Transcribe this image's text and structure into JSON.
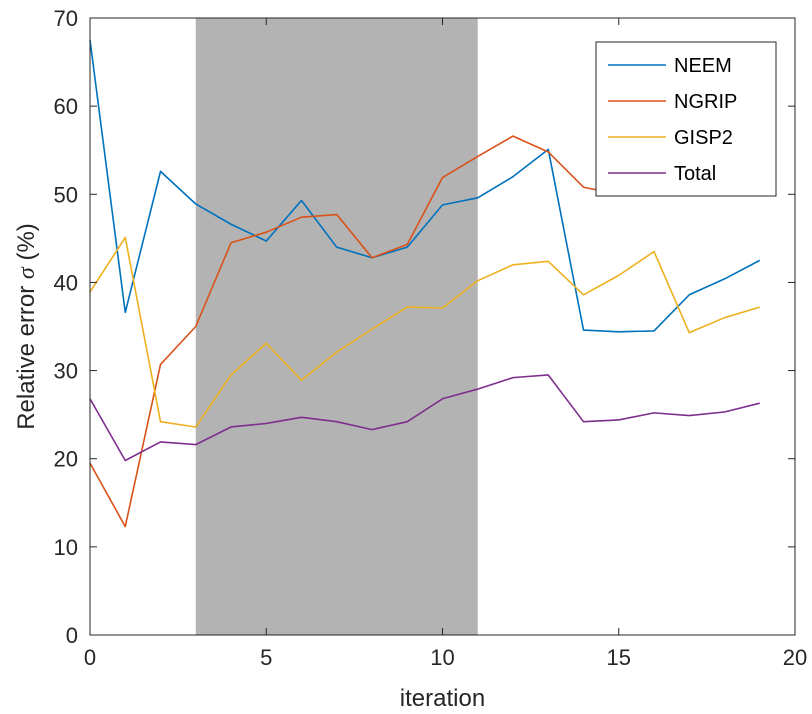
{
  "chart_data": {
    "type": "line",
    "xlabel": "iteration",
    "ylabel_prefix": "Relative error ",
    "ylabel_symbol": "σ",
    "ylabel_suffix": " (%)",
    "xlim": [
      0,
      20
    ],
    "ylim": [
      0,
      70
    ],
    "x_ticks": [
      0,
      5,
      10,
      15,
      20
    ],
    "y_ticks": [
      0,
      10,
      20,
      30,
      40,
      50,
      60,
      70
    ],
    "grid": false,
    "legend_position": "top-right",
    "shaded_region": {
      "x_start": 3,
      "x_end": 11,
      "color": "#b3b3b3"
    },
    "x": [
      0,
      1,
      2,
      3,
      4,
      5,
      6,
      7,
      8,
      9,
      10,
      11,
      12,
      13,
      14,
      15,
      16,
      17,
      18,
      19
    ],
    "series": [
      {
        "name": "NEEM",
        "color": "#0072bd",
        "values": [
          67.5,
          36.6,
          52.6,
          48.9,
          46.6,
          44.7,
          49.3,
          44.0,
          42.8,
          44.0,
          48.8,
          49.6,
          52.0,
          55.1,
          34.6,
          34.4,
          34.5,
          38.6,
          40.4,
          42.5
        ]
      },
      {
        "name": "NGRIP",
        "color": "#d95319",
        "values": [
          19.5,
          12.3,
          30.7,
          35.0,
          44.5,
          45.7,
          47.4,
          47.7,
          42.8,
          44.3,
          51.9,
          54.3,
          56.6,
          54.8,
          50.8,
          50.0,
          51.8,
          52.6,
          53.2,
          53.6
        ]
      },
      {
        "name": "GISP2",
        "color": "#edb120",
        "values": [
          38.9,
          45.1,
          24.2,
          23.6,
          29.5,
          33.1,
          28.9,
          32.1,
          34.7,
          37.2,
          37.1,
          40.2,
          42.0,
          42.4,
          38.6,
          40.8,
          43.5,
          34.3,
          36.0,
          37.2
        ]
      },
      {
        "name": "Total",
        "color": "#7e2f8e",
        "values": [
          26.8,
          19.8,
          21.9,
          21.6,
          23.6,
          24.0,
          24.7,
          24.2,
          23.3,
          24.2,
          26.8,
          27.9,
          29.2,
          29.5,
          24.2,
          24.4,
          25.2,
          24.9,
          25.3,
          26.3
        ]
      }
    ]
  }
}
